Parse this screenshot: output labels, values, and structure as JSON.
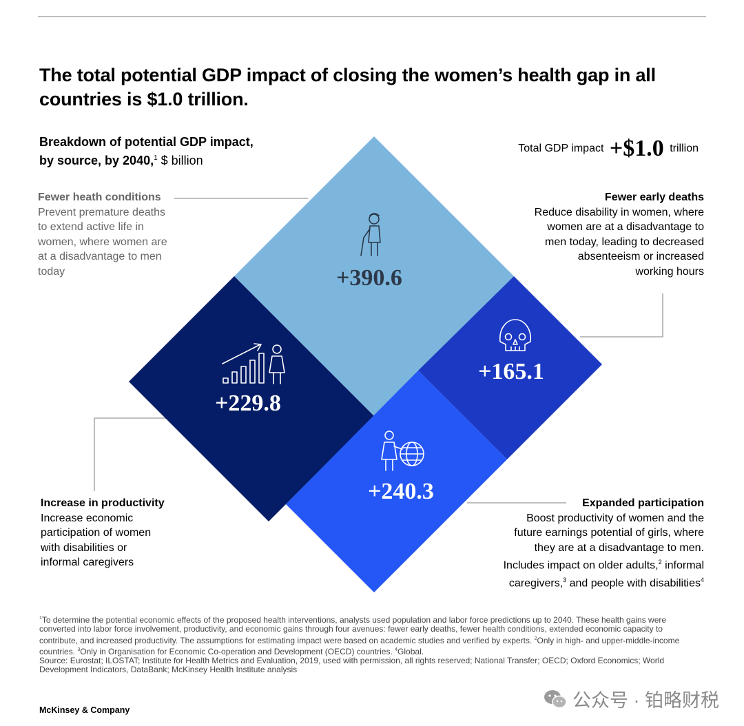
{
  "title": "The total potential GDP impact of closing the women’s health gap in all countries is $1.0 trillion.",
  "subtitle": {
    "line1": "Breakdown of potential GDP impact,",
    "line2_bold": "by source, by 2040,",
    "footnote_ref": "1",
    "unit": " $ billion"
  },
  "total": {
    "label": "Total GDP impact",
    "value": "+$1.0",
    "unit": "trillion"
  },
  "chart_data": {
    "type": "treemap-diamond",
    "title": "The total potential GDP impact of closing the women’s health gap in all countries is $1.0 trillion.",
    "unit": "$ billion",
    "total_label": "Total GDP impact +$1.0 trillion",
    "segments": [
      {
        "name": "Fewer heath conditions",
        "value": 390.6,
        "label": "+390.6",
        "color": "#7db6dd",
        "icon": "elderly-person-with-cane-icon"
      },
      {
        "name": "Increase in productivity",
        "value": 229.8,
        "label": "+229.8",
        "color": "#051c66",
        "icon": "growth-bars-person-icon"
      },
      {
        "name": "Fewer early deaths",
        "value": 165.1,
        "label": "+165.1",
        "color": "#1b39c2",
        "icon": "skull-icon"
      },
      {
        "name": "Expanded participation",
        "value": 240.3,
        "label": "+240.3",
        "color": "#2457f5",
        "icon": "person-with-globe-icon"
      }
    ]
  },
  "annotations": {
    "health": {
      "heading": "Fewer heath conditions",
      "lines": [
        "Prevent premature deaths",
        "to extend active life in",
        "women, where women are",
        "at a disadvantage to men",
        "today"
      ]
    },
    "deaths": {
      "heading": "Fewer early deaths",
      "lines": [
        "Reduce disability in women, where",
        "women are at a disadvantage to",
        "men today, leading to decreased",
        "absenteeism or increased",
        "working hours"
      ]
    },
    "productivity": {
      "heading": "Increase in productivity",
      "lines": [
        "Increase economic",
        "participation of women",
        "with disabilities or",
        "informal caregivers"
      ]
    },
    "participation": {
      "heading": "Expanded participation",
      "lines": [
        "Boost productivity of women and the",
        "future earnings potential of girls, where",
        "they are at a disadvantage to men."
      ],
      "l4a": "Includes impact on older adults,",
      "s1": "2",
      "l4b": " informal",
      "l5a": "caregivers,",
      "s2": "3",
      "l5b": " and people with disabilities",
      "s3": "4"
    }
  },
  "footnote": {
    "n1": "1",
    "t1": "To determine the potential economic effects of the proposed health interventions, analysts used population and labor force predictions up to 2040. These health gains were converted into labor force involvement, productivity, and economic gains through four avenues: fewer early deaths, fewer health conditions, extended economic capacity to contribute, and increased productivity. The assumptions for estimating impact were based on academic studies and verified by experts. ",
    "n2": "2",
    "t2": "Only in high- and upper-middle-income countries. ",
    "n3": "3",
    "t3": "Only in Organisation for Economic Co-operation and Development (OECD) countries. ",
    "n4": "4",
    "t4": "Global.",
    "source": "Source: Eurostat; ILOSTAT; Institute for Health Metrics and Evaluation, 2019, used with permission, all rights reserved; National Transfer; OECD; Oxford Economics; World Development Indicators, DataBank; McKinsey Health Institute analysis"
  },
  "brand": "McKinsey & Company",
  "watermark": "公众号 · 铂略财税"
}
